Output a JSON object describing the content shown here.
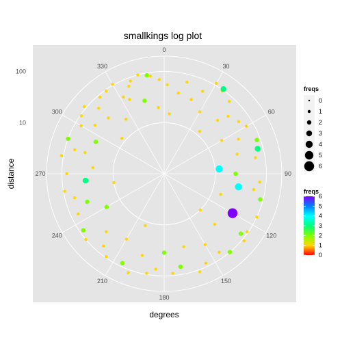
{
  "chart_data": {
    "type": "scatter",
    "coordinate_system": "polar",
    "title": "smallkings log plot",
    "xlabel": "degrees",
    "ylabel": "distance",
    "r_scale": "log10",
    "angle_ticks": [
      0,
      30,
      60,
      90,
      120,
      150,
      180,
      210,
      240,
      270,
      300,
      330
    ],
    "r_ticks": [
      10,
      100
    ],
    "r_tick_labels": [
      "10",
      "100"
    ],
    "grid": true,
    "background": "#e5e5e5",
    "grid_color": "#ffffff",
    "legend_position": "right",
    "size_legend": {
      "title": "freqs",
      "labels": [
        "0",
        "1",
        "2",
        "3",
        "4",
        "5",
        "6"
      ],
      "values": [
        0,
        1,
        2,
        3,
        4,
        5,
        6
      ]
    },
    "color_legend": {
      "title": "freqs",
      "labels": [
        "6",
        "5",
        "4",
        "3",
        "2",
        "1",
        "0"
      ],
      "values": [
        6,
        5,
        4,
        3,
        2,
        1,
        0
      ],
      "gradient": [
        "#ff0000",
        "#ffd700",
        "#80ff00",
        "#00ff80",
        "#00ffff",
        "#0080ff",
        "#8000ff"
      ]
    },
    "points": [
      {
        "deg": 25,
        "r": 60,
        "f": 1
      },
      {
        "deg": 14,
        "r": 70,
        "f": 1
      },
      {
        "deg": 2,
        "r": 55,
        "f": 1
      },
      {
        "deg": -3,
        "r": 70,
        "f": 1
      },
      {
        "deg": -10,
        "r": 90,
        "f": 2
      },
      {
        "deg": -20,
        "r": 85,
        "f": 1
      },
      {
        "deg": -35,
        "r": 95,
        "f": 1
      },
      {
        "deg": -28,
        "r": 50,
        "f": 1
      },
      {
        "deg": 35,
        "r": 95,
        "f": 1
      },
      {
        "deg": 35,
        "r": 105,
        "f": 3
      },
      {
        "deg": 30,
        "r": 110,
        "f": 1
      },
      {
        "deg": 42,
        "r": 80,
        "f": 1
      },
      {
        "deg": 55,
        "r": 60,
        "f": 1
      },
      {
        "deg": 60,
        "r": 72,
        "f": 1
      },
      {
        "deg": 48,
        "r": 48,
        "f": 1
      },
      {
        "deg": 65,
        "r": 40,
        "f": 1
      },
      {
        "deg": 75,
        "r": 78,
        "f": 3
      },
      {
        "deg": 70,
        "r": 85,
        "f": 2
      },
      {
        "deg": 80,
        "r": 65,
        "f": 1
      },
      {
        "deg": 95,
        "r": 75,
        "f": 1
      },
      {
        "deg": 100,
        "r": 60,
        "f": 1
      },
      {
        "deg": 105,
        "r": 88,
        "f": 2
      },
      {
        "deg": 115,
        "r": 100,
        "f": 1
      },
      {
        "deg": 125,
        "r": 95,
        "f": 1
      },
      {
        "deg": 130,
        "r": 110,
        "f": 1
      },
      {
        "deg": 128,
        "r": 80,
        "f": 2
      },
      {
        "deg": 140,
        "r": 100,
        "f": 2
      },
      {
        "deg": 145,
        "r": 75,
        "f": 1
      },
      {
        "deg": 155,
        "r": 85,
        "f": 1
      },
      {
        "deg": 160,
        "r": 110,
        "f": 1
      },
      {
        "deg": 170,
        "r": 70,
        "f": 2
      },
      {
        "deg": 175,
        "r": 90,
        "f": 1
      },
      {
        "deg": 185,
        "r": 75,
        "f": 1
      },
      {
        "deg": 190,
        "r": 95,
        "f": 1
      },
      {
        "deg": 200,
        "r": 115,
        "f": 1
      },
      {
        "deg": 205,
        "r": 85,
        "f": 2
      },
      {
        "deg": 215,
        "r": 95,
        "f": 1
      },
      {
        "deg": 220,
        "r": 70,
        "f": 1
      },
      {
        "deg": 230,
        "r": 100,
        "f": 1
      },
      {
        "deg": 235,
        "r": 85,
        "f": 2
      },
      {
        "deg": 245,
        "r": 72,
        "f": 1
      },
      {
        "deg": 255,
        "r": 65,
        "f": 1
      },
      {
        "deg": 260,
        "r": 95,
        "f": 1
      },
      {
        "deg": 270,
        "r": 80,
        "f": 1
      },
      {
        "deg": 280,
        "r": 110,
        "f": 1
      },
      {
        "deg": 285,
        "r": 65,
        "f": 1
      },
      {
        "deg": 290,
        "r": 100,
        "f": 2
      },
      {
        "deg": 300,
        "r": 75,
        "f": 1
      },
      {
        "deg": 305,
        "r": 95,
        "f": 1
      },
      {
        "deg": 310,
        "r": 110,
        "f": 1
      },
      {
        "deg": 315,
        "r": 65,
        "f": 1
      },
      {
        "deg": 320,
        "r": 90,
        "f": 1
      },
      {
        "deg": 330,
        "r": 105,
        "f": 1
      },
      {
        "deg": 338,
        "r": 70,
        "f": 1
      },
      {
        "deg": 345,
        "r": 100,
        "f": 1
      },
      {
        "deg": 352,
        "r": 85,
        "f": 1
      },
      {
        "deg": 10,
        "r": 40,
        "f": 1
      },
      {
        "deg": 20,
        "r": 35,
        "f": 1
      },
      {
        "deg": 30,
        "r": 25,
        "f": 1
      },
      {
        "deg": 45,
        "r": 30,
        "f": 1
      },
      {
        "deg": 60,
        "r": 20,
        "f": 1
      },
      {
        "deg": 75,
        "r": 30,
        "f": 1
      },
      {
        "deg": 90,
        "r": 25,
        "f": 2
      },
      {
        "deg": 100,
        "r": 30,
        "f": 4
      },
      {
        "deg": 110,
        "r": 15,
        "f": 1
      },
      {
        "deg": 120,
        "r": 35,
        "f": 6
      },
      {
        "deg": 135,
        "r": 25,
        "f": 1
      },
      {
        "deg": 150,
        "r": 40,
        "f": 1
      },
      {
        "deg": 165,
        "r": 30,
        "f": 1
      },
      {
        "deg": 180,
        "r": 35,
        "f": 2
      },
      {
        "deg": 195,
        "r": 45,
        "f": 1
      },
      {
        "deg": 210,
        "r": 30,
        "f": 1
      },
      {
        "deg": 225,
        "r": 40,
        "f": 1
      },
      {
        "deg": 240,
        "r": 20,
        "f": 2
      },
      {
        "deg": 250,
        "r": 40,
        "f": 2
      },
      {
        "deg": 265,
        "r": 35,
        "f": 3
      },
      {
        "deg": 275,
        "r": 25,
        "f": 1
      },
      {
        "deg": 285,
        "r": 40,
        "f": 1
      },
      {
        "deg": 295,
        "r": 30,
        "f": 2
      },
      {
        "deg": 305,
        "r": 45,
        "f": 1
      },
      {
        "deg": 315,
        "r": 35,
        "f": 1
      },
      {
        "deg": 325,
        "r": 20,
        "f": 1
      },
      {
        "deg": 335,
        "r": 40,
        "f": 1
      },
      {
        "deg": 345,
        "r": 30,
        "f": 2
      },
      {
        "deg": 355,
        "r": 20,
        "f": 1
      },
      {
        "deg": 5,
        "r": 15,
        "f": 1
      },
      {
        "deg": 85,
        "r": 12,
        "f": 4
      },
      {
        "deg": 135,
        "r": 10,
        "f": 1
      },
      {
        "deg": 200,
        "r": 12,
        "f": 1
      },
      {
        "deg": 260,
        "r": 10,
        "f": 1
      },
      {
        "deg": 310,
        "r": 12,
        "f": 1
      },
      {
        "deg": 40,
        "r": 12,
        "f": 1
      }
    ]
  }
}
